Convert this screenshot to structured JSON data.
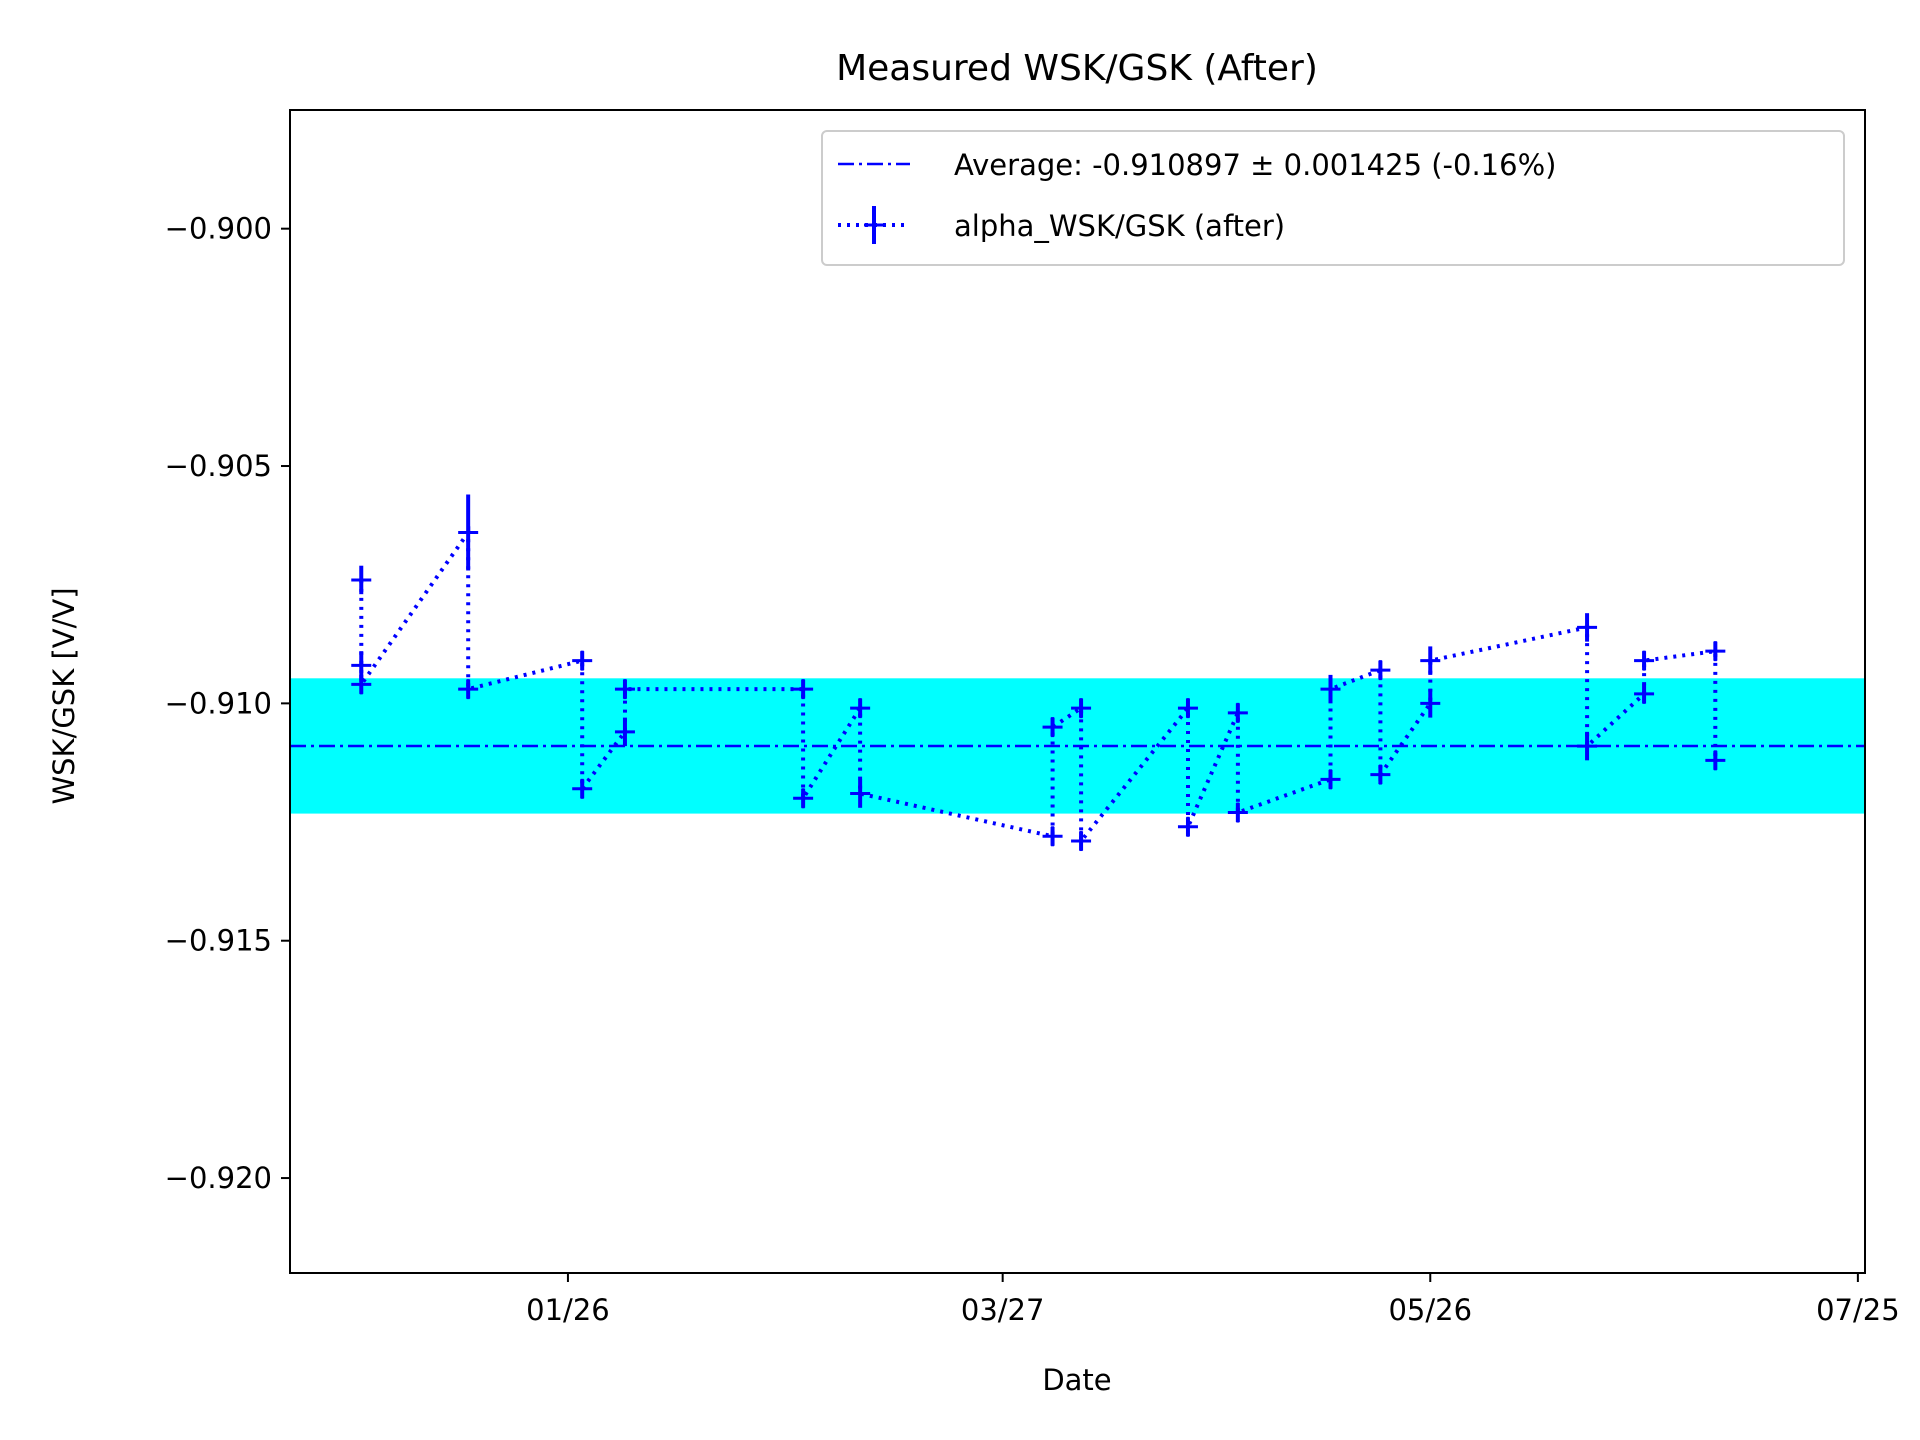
{
  "chart_data": {
    "type": "line",
    "title": "Measured WSK/GSK (After)",
    "xlabel": "Date",
    "ylabel": "WSK/GSK [V/V]",
    "x_tick_labels": [
      "01/26",
      "03/27",
      "05/26",
      "07/25"
    ],
    "x_ticks": [
      "2024-01-26",
      "2024-03-27",
      "2024-05-26",
      "2024-07-25"
    ],
    "xlim": [
      "2023-12-18",
      "2024-07-26"
    ],
    "y_ticks": [
      -0.92,
      -0.915,
      -0.91,
      -0.905,
      -0.9
    ],
    "y_tick_labels": [
      "−0.920",
      "−0.915",
      "−0.910",
      "−0.905",
      "−0.900"
    ],
    "ylim": [
      -0.922,
      -0.8975
    ],
    "grid": false,
    "legend_position": "top-right",
    "colors": {
      "series": "#0000ff",
      "band": "#00ffff",
      "average": "#0000ff"
    },
    "average": {
      "label": "Average: -0.910897 ± 0.001425 (-0.16%)",
      "value": -0.910897,
      "band": 0.001425
    },
    "series": [
      {
        "name": "alpha_WSK/GSK (after)",
        "points": [
          {
            "x": "2023-12-28",
            "y": -0.9074,
            "err": 0.0003
          },
          {
            "x": "2023-12-28",
            "y": -0.9092,
            "err": 0.0003
          },
          {
            "x": "2023-12-28",
            "y": -0.9096,
            "err": 0.0002
          },
          {
            "x": "2024-01-12",
            "y": -0.9064,
            "err": 0.0008
          },
          {
            "x": "2024-01-12",
            "y": -0.9097,
            "err": 0.0002
          },
          {
            "x": "2024-01-28",
            "y": -0.9091,
            "err": 0.0002
          },
          {
            "x": "2024-01-28",
            "y": -0.9118,
            "err": 0.0002
          },
          {
            "x": "2024-02-03",
            "y": -0.9106,
            "err": 0.0003
          },
          {
            "x": "2024-02-03",
            "y": -0.9097,
            "err": 0.0002
          },
          {
            "x": "2024-02-28",
            "y": -0.9097,
            "err": 0.0002
          },
          {
            "x": "2024-02-28",
            "y": -0.912,
            "err": 0.0002
          },
          {
            "x": "2024-03-07",
            "y": -0.9101,
            "err": 0.0002
          },
          {
            "x": "2024-03-07",
            "y": -0.9119,
            "err": 0.0003
          },
          {
            "x": "2024-04-03",
            "y": -0.9128,
            "err": 0.0002
          },
          {
            "x": "2024-04-03",
            "y": -0.9105,
            "err": 0.0002
          },
          {
            "x": "2024-04-07",
            "y": -0.9101,
            "err": 0.0002
          },
          {
            "x": "2024-04-07",
            "y": -0.9129,
            "err": 0.0002
          },
          {
            "x": "2024-04-22",
            "y": -0.9101,
            "err": 0.0002
          },
          {
            "x": "2024-04-22",
            "y": -0.9126,
            "err": 0.0002
          },
          {
            "x": "2024-04-29",
            "y": -0.9102,
            "err": 0.0002
          },
          {
            "x": "2024-04-29",
            "y": -0.9123,
            "err": 0.0002
          },
          {
            "x": "2024-05-12",
            "y": -0.9116,
            "err": 0.0002
          },
          {
            "x": "2024-05-12",
            "y": -0.9097,
            "err": 0.0003
          },
          {
            "x": "2024-05-19",
            "y": -0.9093,
            "err": 0.0002
          },
          {
            "x": "2024-05-19",
            "y": -0.9115,
            "err": 0.0002
          },
          {
            "x": "2024-05-26",
            "y": -0.91,
            "err": 0.0003
          },
          {
            "x": "2024-05-26",
            "y": -0.9091,
            "err": 0.0003
          },
          {
            "x": "2024-06-17",
            "y": -0.9084,
            "err": 0.0003
          },
          {
            "x": "2024-06-17",
            "y": -0.9109,
            "err": 0.0003
          },
          {
            "x": "2024-06-25",
            "y": -0.9098,
            "err": 0.0002
          },
          {
            "x": "2024-06-25",
            "y": -0.9091,
            "err": 0.0002
          },
          {
            "x": "2024-07-05",
            "y": -0.9089,
            "err": 0.0002
          },
          {
            "x": "2024-07-05",
            "y": -0.9112,
            "err": 0.0002
          }
        ]
      }
    ]
  }
}
